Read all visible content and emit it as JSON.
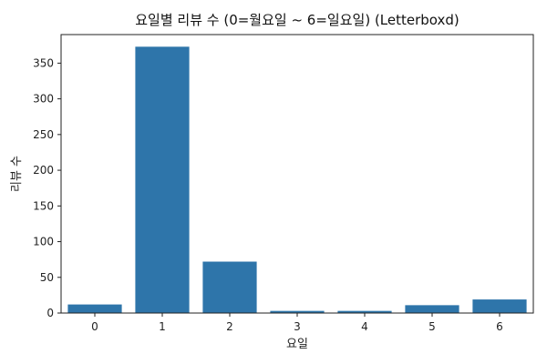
{
  "chart_data": {
    "type": "bar",
    "title": "요일별 리뷰 수 (0=월요일 ~ 6=일요일) (Letterboxd)",
    "xlabel": "요일",
    "ylabel": "리뷰 수",
    "categories": [
      "0",
      "1",
      "2",
      "3",
      "4",
      "5",
      "6"
    ],
    "values": [
      12,
      373,
      72,
      3,
      3,
      11,
      19
    ],
    "ylim": [
      0,
      390
    ],
    "yticks": [
      0,
      50,
      100,
      150,
      200,
      250,
      300,
      350
    ],
    "grid": false,
    "legend": "none",
    "bar_color": "#2e75aa"
  }
}
